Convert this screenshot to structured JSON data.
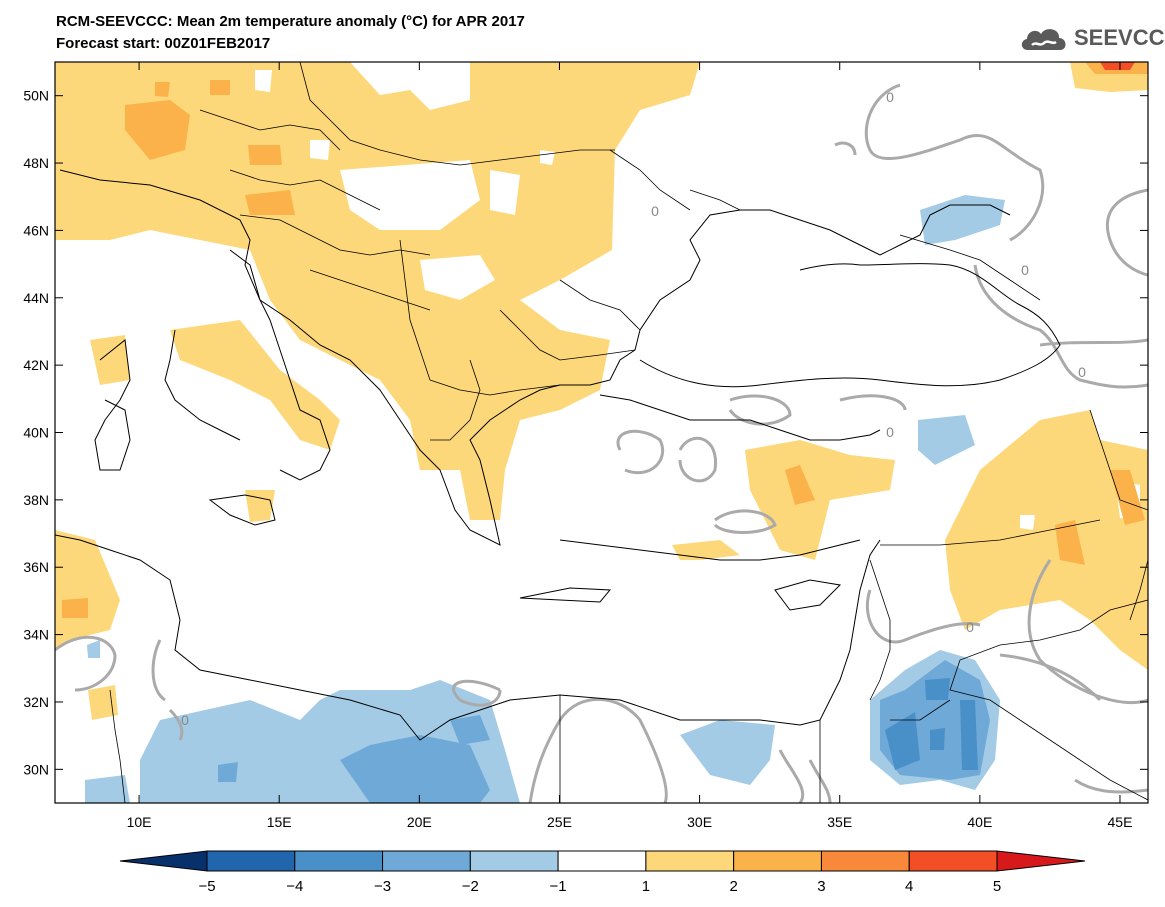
{
  "title": {
    "line1": "RCM-SEEVCCC: Mean 2m temperature anomaly (°C) for APR 2017",
    "line2": "Forecast start: 00Z01FEB2017"
  },
  "logo": {
    "text": "SEEVCCC",
    "icon": "cloud-icon"
  },
  "map": {
    "lon_range": [
      7,
      46
    ],
    "lat_range": [
      29,
      51
    ],
    "lon_ticks": [
      {
        "value": 10,
        "label": "10E"
      },
      {
        "value": 15,
        "label": "15E"
      },
      {
        "value": 20,
        "label": "20E"
      },
      {
        "value": 25,
        "label": "25E"
      },
      {
        "value": 30,
        "label": "30E"
      },
      {
        "value": 35,
        "label": "35E"
      },
      {
        "value": 40,
        "label": "40E"
      },
      {
        "value": 45,
        "label": "45E"
      }
    ],
    "lat_ticks": [
      {
        "value": 30,
        "label": "30N"
      },
      {
        "value": 32,
        "label": "32N"
      },
      {
        "value": 34,
        "label": "34N"
      },
      {
        "value": 36,
        "label": "36N"
      },
      {
        "value": 38,
        "label": "38N"
      },
      {
        "value": 40,
        "label": "40N"
      },
      {
        "value": 42,
        "label": "42N"
      },
      {
        "value": 44,
        "label": "44N"
      },
      {
        "value": 46,
        "label": "46N"
      },
      {
        "value": 48,
        "label": "48N"
      },
      {
        "value": 50,
        "label": "50N"
      }
    ],
    "contour_labels": [
      "0",
      "0",
      "0",
      "0",
      "0",
      "0",
      "0"
    ]
  },
  "colorbar": {
    "labels": [
      "−5",
      "−4",
      "−3",
      "−2",
      "−1",
      "1",
      "2",
      "3",
      "4",
      "5"
    ],
    "colors": {
      "below": "#08306b",
      "bins": [
        "#2166ac",
        "#4a90c8",
        "#6fa9d8",
        "#a3cbe5",
        "#ffffff",
        "#fdd87a",
        "#fbb24a",
        "#f8883a",
        "#f24f26"
      ],
      "above": "#d7191c"
    }
  }
}
